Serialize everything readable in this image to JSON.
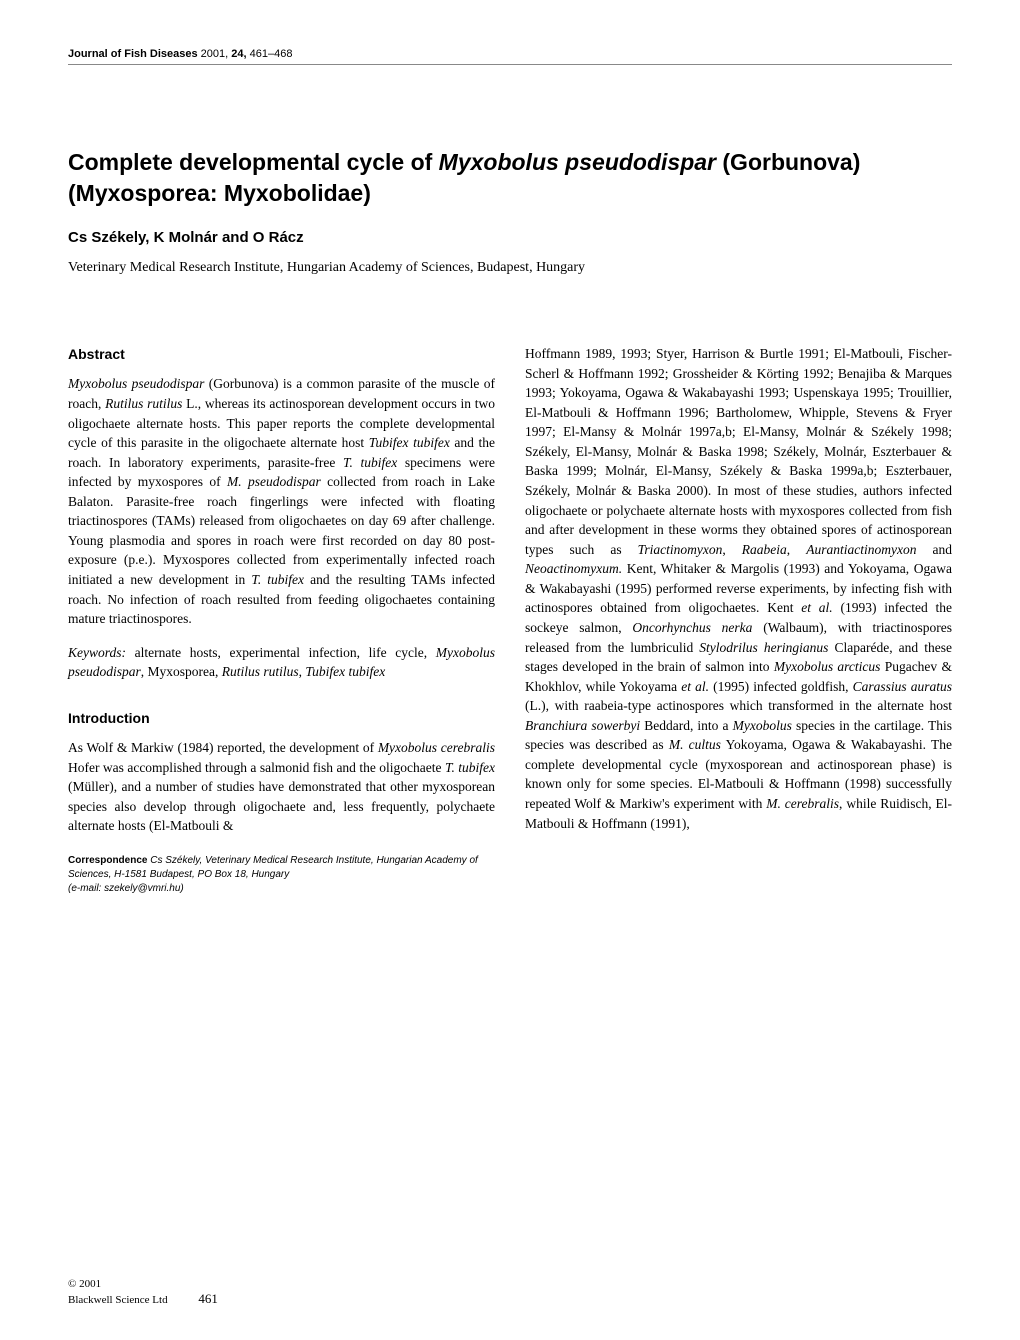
{
  "header": {
    "journal": "Journal of Fish Diseases",
    "year": "2001,",
    "vol": "24,",
    "pages": "461–468"
  },
  "title_part1": "Complete developmental cycle of ",
  "title_species": "Myxobolus pseudodispar",
  "title_part2": " (Gorbunova) (Myxosporea: Myxobolidae)",
  "authors": "Cs Székely, K Molnár and O Rácz",
  "affiliation": "Veterinary Medical Research Institute, Hungarian Academy of Sciences, Budapest, Hungary",
  "sections": {
    "abstract_head": "Abstract",
    "intro_head": "Introduction"
  },
  "abstract_html": "<em>Myxobolus pseudodispar</em> (Gorbunova) is a common parasite of the muscle of roach, <em>Rutilus rutilus</em> L., whereas its actinosporean development occurs in two oligochaete alternate hosts. This paper reports the complete developmental cycle of this parasite in the oligochaete alternate host <em>Tubifex tubifex</em> and the roach. In laboratory experiments, parasite-free <em>T. tubifex</em> specimens were infected by myxospores of <em>M. pseudodispar</em> collected from roach in Lake Balaton. Parasite-free roach fingerlings were infected with floating triactinospores (TAMs) released from oligochaetes on day 69 after challenge. Young plasmodia and spores in roach were first recorded on day 80 post-exposure (p.e.). Myxospores collected from experimentally infected roach initiated a new development in <em>T. tubifex</em> and the resulting TAMs infected roach. No infection of roach resulted from feeding oligochaetes containing mature triactinospores.",
  "keywords_html": "<em>Keywords:</em> alternate hosts, experimental infection, life cycle, <em>Myxobolus pseudodispar</em>, Myxosporea, <em>Rutilus rutilus</em>, <em>Tubifex tubifex</em>",
  "intro_html": "As Wolf & Markiw (1984) reported, the development of <em>Myxobolus cerebralis</em> Hofer was accomplished through a salmonid fish and the oligochaete <em>T. tubifex</em> (Müller), and a number of studies have demonstrated that other myxosporean species also develop through oligochaete and, less frequently, polychaete alternate hosts (El-Matbouli &",
  "rightcol_html": "Hoffmann 1989, 1993; Styer, Harrison & Burtle 1991; El-Matbouli, Fischer-Scherl & Hoffmann 1992; Grossheider & Körting 1992; Benajiba & Marques 1993; Yokoyama, Ogawa & Wakabayashi 1993; Uspenskaya 1995; Trouillier, El-Matbouli & Hoffmann 1996; Bartholomew, Whipple, Stevens & Fryer 1997; El-Mansy & Molnár 1997a,b; El-Mansy, Molnár & Székely 1998; Székely, El-Mansy, Molnár & Baska 1998; Székely, Molnár, Eszterbauer & Baska 1999; Molnár, El-Mansy, Székely & Baska 1999a,b; Eszterbauer, Székely, Molnár & Baska 2000). In most of these studies, authors infected oligochaete or polychaete alternate hosts with myxospores collected from fish and after development in these worms they obtained spores of actinosporean types such as <em>Triactinomyxon</em>, <em>Raabeia</em>, <em>Aurantiactinomyxon</em> and <em>Neoactinomyxum.</em> Kent, Whitaker & Margolis (1993) and Yokoyama, Ogawa & Wakabayashi (1995) performed reverse experiments, by infecting fish with actinospores obtained from oligochaetes. Kent <em>et al.</em> (1993) infected the sockeye salmon, <em>Oncorhynchus nerka</em> (Walbaum), with triactinospores released from the lumbriculid <em>Stylodrilus heringianus</em> Claparéde, and these stages developed in the brain of salmon into <em>Myxobolus arcticus</em> Pugachev & Khokhlov, while Yokoyama <em>et al.</em> (1995) infected goldfish, <em>Carassius auratus</em> (L.), with raabeia-type actinospores which transformed in the alternate host <em>Branchiura sowerbyi</em> Beddard, into a <em>Myxobolus</em> species in the cartilage. This species was described as <em>M. cultus</em> Yokoyama, Ogawa & Wakabayashi. The complete developmental cycle (myxosporean and actinosporean phase) is known only for some species. El-Matbouli & Hoffmann (1998) successfully repeated Wolf & Markiw's experiment with <em>M. cerebralis</em>, while Ruidisch, El-Matbouli & Hoffmann (1991),",
  "correspondence": {
    "label": "Correspondence",
    "body_html": "Cs Székely, Veterinary Medical Research Institute, Hungarian Academy of Sciences, H-1581 Budapest, PO Box 18, Hungary<br>(e-mail: szekely@vmri.hu)"
  },
  "copyright": {
    "line1": "© 2001",
    "line2": "Blackwell Science Ltd",
    "pagenum": "461"
  }
}
